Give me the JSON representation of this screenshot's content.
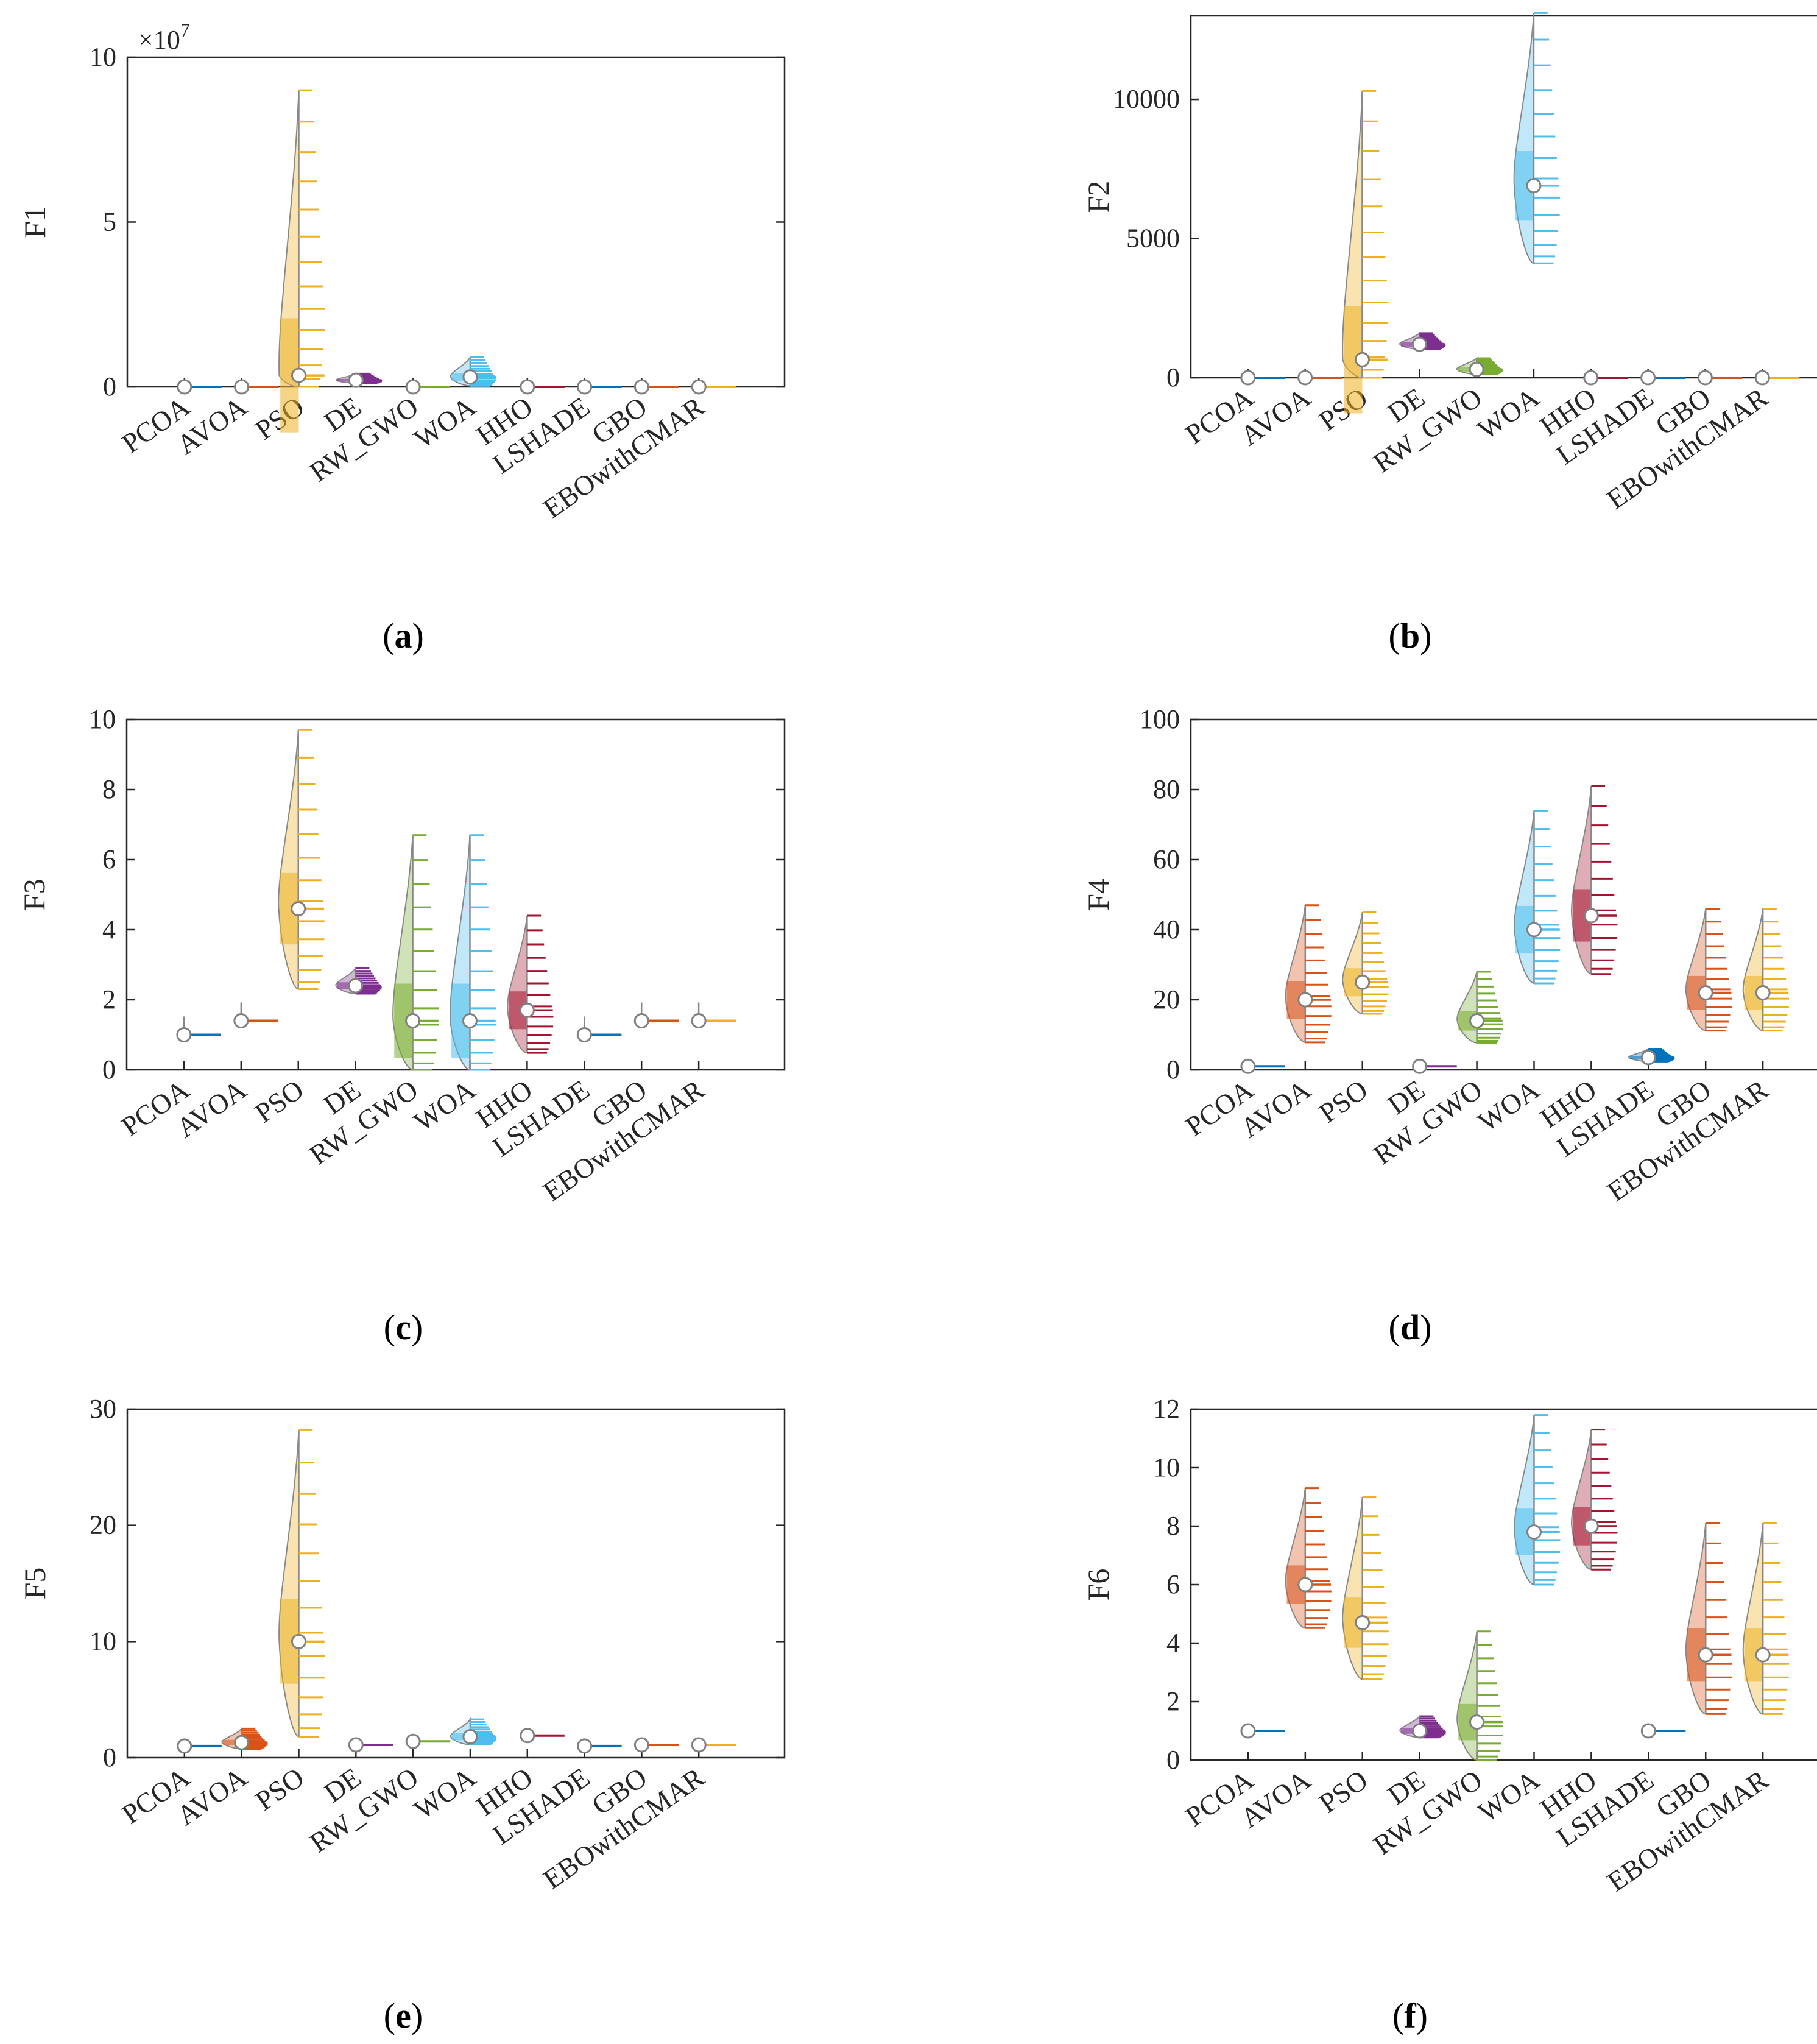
{
  "colors": {
    "PCOA": "#0072BD",
    "AVOA": "#D95319",
    "PSO": "#EDB120",
    "DE": "#7E2F8E",
    "RW_GWO": "#77AC30",
    "WOA": "#4DBEEE",
    "HHO": "#A2142F",
    "LSHADE": "#0072BD",
    "GBO": "#D95319",
    "EBOwithCMAR": "#EDB120"
  },
  "chart_data": [
    {
      "type": "violin",
      "panel_label": "a",
      "ylabel": "F1",
      "exponent_label": "×10",
      "exponent_power": "7",
      "ylim": [
        0,
        10
      ],
      "yticks": [
        0,
        5,
        10
      ],
      "tick_labels": [
        "0",
        "5",
        "10"
      ],
      "categories": [
        "PCOA",
        "AVOA",
        "PSO",
        "DE",
        "RW_GWO",
        "WOA",
        "HHO",
        "LSHADE",
        "GBO",
        "EBOwithCMAR"
      ],
      "medians": [
        0.0,
        0.0,
        0.35,
        0.2,
        0.0,
        0.3,
        0.0,
        0.0,
        0.0,
        0.0
      ],
      "maxima": [
        0.0,
        0.0,
        9.0,
        0.4,
        0.0,
        0.9,
        0.0,
        0.0,
        0.0,
        0.0
      ]
    },
    {
      "type": "violin",
      "panel_label": "b",
      "ylabel": "F2",
      "ylim": [
        0,
        13000
      ],
      "yticks": [
        0,
        5000,
        10000
      ],
      "tick_labels": [
        "0",
        "5000",
        "10000"
      ],
      "categories": [
        "PCOA",
        "AVOA",
        "PSO",
        "DE",
        "RW_GWO",
        "WOA",
        "HHO",
        "LSHADE",
        "GBO",
        "EBOwithCMAR"
      ],
      "medians": [
        0,
        0,
        650,
        1200,
        300,
        6900,
        0,
        0,
        0,
        0
      ],
      "maxima": [
        0,
        0,
        10300,
        1600,
        700,
        13100,
        0,
        0,
        0,
        0
      ]
    },
    {
      "type": "violin",
      "panel_label": "c",
      "ylabel": "F3",
      "ylim": [
        0,
        10
      ],
      "yticks": [
        0,
        2,
        4,
        6,
        8,
        10
      ],
      "tick_labels": [
        "0",
        "2",
        "4",
        "6",
        "8",
        "10"
      ],
      "categories": [
        "PCOA",
        "AVOA",
        "PSO",
        "DE",
        "RW_GWO",
        "WOA",
        "HHO",
        "LSHADE",
        "GBO",
        "EBOwithCMAR"
      ],
      "medians": [
        1.0,
        1.4,
        4.6,
        2.4,
        1.4,
        1.4,
        1.7,
        1.0,
        1.4,
        1.4
      ],
      "maxima": [
        1.0,
        1.4,
        9.7,
        2.9,
        6.7,
        6.7,
        4.4,
        1.0,
        1.4,
        1.4
      ]
    },
    {
      "type": "violin",
      "panel_label": "d",
      "ylabel": "F4",
      "ylim": [
        0,
        100
      ],
      "yticks": [
        0,
        20,
        40,
        60,
        80,
        100
      ],
      "tick_labels": [
        "0",
        "20",
        "40",
        "60",
        "80",
        "100"
      ],
      "categories": [
        "PCOA",
        "AVOA",
        "PSO",
        "DE",
        "RW_GWO",
        "WOA",
        "HHO",
        "LSHADE",
        "GBO",
        "EBOwithCMAR"
      ],
      "medians": [
        1,
        20,
        25,
        1,
        14,
        40,
        44,
        3.5,
        22,
        22
      ],
      "maxima": [
        1,
        47,
        45,
        1,
        28,
        74,
        81,
        6,
        46,
        46
      ]
    },
    {
      "type": "violin",
      "panel_label": "e",
      "ylabel": "F5",
      "ylim": [
        0,
        30
      ],
      "yticks": [
        0,
        10,
        20,
        30
      ],
      "tick_labels": [
        "0",
        "10",
        "20",
        "30"
      ],
      "categories": [
        "PCOA",
        "AVOA",
        "PSO",
        "DE",
        "RW_GWO",
        "WOA",
        "HHO",
        "LSHADE",
        "GBO",
        "EBOwithCMAR"
      ],
      "medians": [
        1.0,
        1.3,
        10.0,
        1.1,
        1.4,
        1.8,
        1.9,
        1.0,
        1.1,
        1.1
      ],
      "maxima": [
        1.0,
        2.5,
        28.2,
        1.2,
        1.8,
        3.3,
        2.4,
        1.0,
        1.2,
        1.2
      ]
    },
    {
      "type": "violin",
      "panel_label": "f",
      "ylabel": "F6",
      "ylim": [
        0,
        12
      ],
      "yticks": [
        0,
        2,
        4,
        6,
        8,
        10,
        12
      ],
      "tick_labels": [
        "0",
        "2",
        "4",
        "6",
        "8",
        "10",
        "12"
      ],
      "categories": [
        "PCOA",
        "AVOA",
        "PSO",
        "DE",
        "RW_GWO",
        "WOA",
        "HHO",
        "LSHADE",
        "GBO",
        "EBOwithCMAR"
      ],
      "medians": [
        1.0,
        6.0,
        4.7,
        1.0,
        1.3,
        7.8,
        8.0,
        1.0,
        3.6,
        3.6
      ],
      "maxima": [
        1.0,
        9.3,
        9.0,
        1.5,
        4.4,
        11.8,
        11.3,
        1.0,
        8.1,
        8.1
      ]
    }
  ]
}
